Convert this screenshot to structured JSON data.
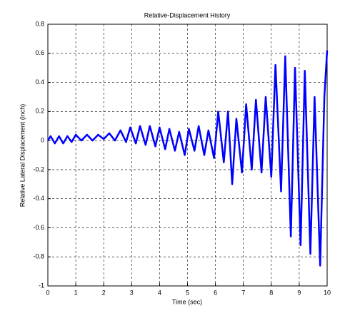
{
  "chart_data": {
    "type": "line",
    "title": "Relative-Displacement History",
    "x_label": "Time (sec)",
    "y_label": "Relative Lateral Displacement (inch)",
    "color": "#0000ff",
    "grid": true,
    "xlim": [
      0,
      10
    ],
    "xticks": [
      0,
      1,
      2,
      3,
      4,
      5,
      6,
      7,
      8,
      9,
      10
    ],
    "ylim": [
      -1,
      0.8
    ],
    "yticks": [
      -1,
      -0.8,
      -0.6,
      -0.4,
      -0.2,
      0,
      0.2,
      0.4,
      0.6,
      0.8
    ],
    "x": [
      0,
      0.1,
      0.25,
      0.4,
      0.55,
      0.7,
      0.85,
      1.0,
      1.2,
      1.4,
      1.6,
      1.8,
      2.0,
      2.2,
      2.4,
      2.6,
      2.8,
      2.95,
      3.15,
      3.3,
      3.5,
      3.65,
      3.85,
      4.0,
      4.2,
      4.35,
      4.55,
      4.7,
      4.9,
      5.05,
      5.25,
      5.4,
      5.6,
      5.75,
      5.95,
      6.1,
      6.3,
      6.45,
      6.6,
      6.75,
      6.95,
      7.1,
      7.3,
      7.45,
      7.65,
      7.8,
      8.0,
      8.15,
      8.35,
      8.5,
      8.7,
      8.85,
      9.05,
      9.2,
      9.4,
      9.55,
      9.75,
      9.9,
      10.0
    ],
    "values": [
      0,
      0.03,
      -0.02,
      0.03,
      -0.02,
      0.03,
      -0.01,
      0.04,
      0.0,
      0.04,
      0.0,
      0.04,
      0.01,
      0.05,
      0.0,
      0.07,
      -0.01,
      0.09,
      -0.02,
      0.1,
      -0.03,
      0.1,
      -0.04,
      0.09,
      -0.06,
      0.08,
      -0.07,
      0.06,
      -0.1,
      0.08,
      -0.07,
      0.1,
      -0.1,
      0.07,
      -0.12,
      0.2,
      -0.15,
      0.2,
      -0.3,
      0.15,
      -0.22,
      0.25,
      -0.2,
      0.28,
      -0.22,
      0.3,
      -0.25,
      0.52,
      -0.35,
      0.58,
      -0.66,
      0.5,
      -0.72,
      0.48,
      -0.78,
      0.3,
      -0.86,
      0.3,
      0.62
    ]
  }
}
